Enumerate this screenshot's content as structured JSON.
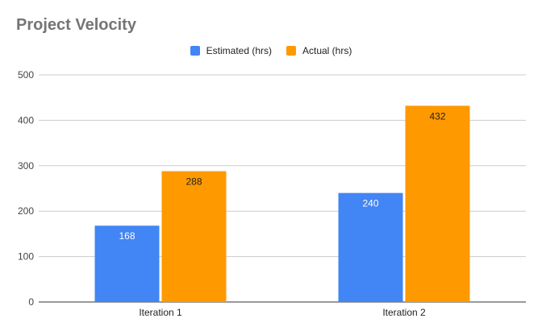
{
  "chart_data": {
    "type": "bar",
    "title": "Project Velocity",
    "categories": [
      "Iteration 1",
      "Iteration 2"
    ],
    "series": [
      {
        "name": "Estimated (hrs)",
        "values": [
          168,
          240
        ],
        "color": "#4285F4",
        "label_color": "#ffffff"
      },
      {
        "name": "Actual (hrs)",
        "values": [
          288,
          432
        ],
        "color": "#FF9900",
        "label_color": "#222222"
      }
    ],
    "ylim": [
      0,
      500
    ],
    "yticks": [
      "0",
      "100",
      "200",
      "300",
      "400",
      "500"
    ],
    "xlabel": "",
    "ylabel": "",
    "grid": true,
    "legend_position": "top-center"
  }
}
